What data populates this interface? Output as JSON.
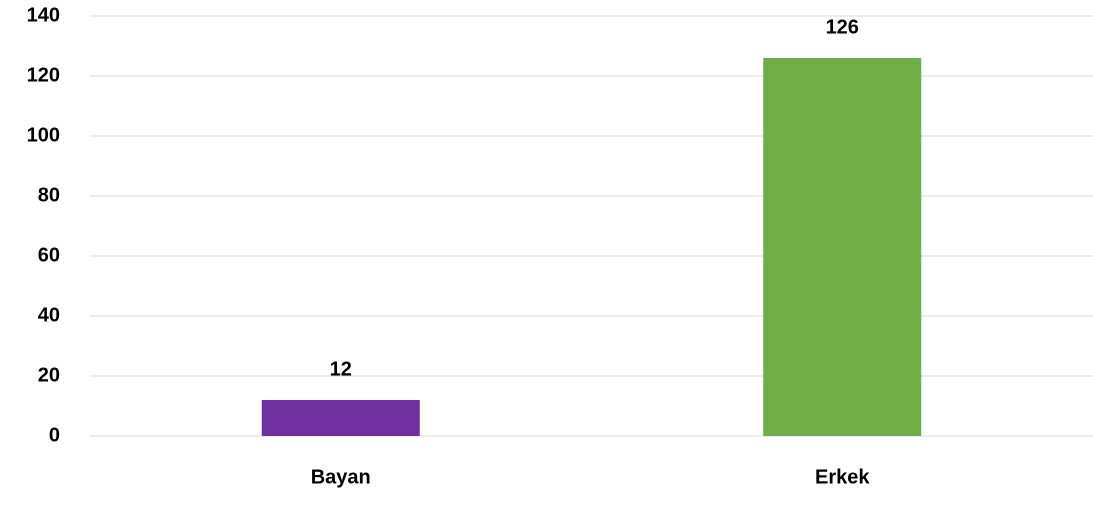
{
  "chart_data": {
    "type": "bar",
    "categories": [
      "Bayan",
      "Erkek"
    ],
    "values": [
      12,
      126
    ],
    "colors": [
      "#7030a0",
      "#70ad47"
    ],
    "ylim": [
      0,
      140
    ],
    "yticks": [
      0,
      20,
      40,
      60,
      80,
      100,
      120,
      140
    ],
    "grid": true
  }
}
